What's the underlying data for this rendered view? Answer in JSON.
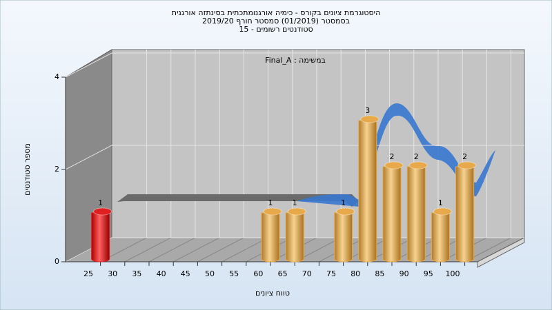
{
  "chart_data": {
    "type": "bar",
    "title": [
      "היסטוגרמת ציונים בקורס - כימיה אורגנומתכתית בסינתזה אורגנית",
      "בסמסטר  (01/2019)  סמסטר חורף 2019/20",
      "סטודנטים רשומים - 15"
    ],
    "annotation": "Final_A : במשימה",
    "x_label": "טווח ציונים",
    "y_label": "מספר סטודנטים",
    "categories": [
      "25",
      "30",
      "35",
      "40",
      "45",
      "50",
      "55",
      "60",
      "65",
      "70",
      "75",
      "80",
      "85",
      "90",
      "95",
      "100"
    ],
    "values": [
      1,
      0,
      0,
      0,
      0,
      0,
      0,
      1,
      1,
      0,
      1,
      3,
      2,
      2,
      1,
      2
    ],
    "colors": [
      "#e02020",
      "#e8a94a",
      "#e8a94a",
      "#e8a94a",
      "#e8a94a",
      "#e8a94a",
      "#e8a94a",
      "#e8a94a",
      "#e8a94a",
      "#e8a94a",
      "#e8a94a",
      "#e8a94a",
      "#e8a94a",
      "#e8a94a",
      "#e8a94a",
      "#e8a94a"
    ],
    "ylim": [
      0,
      4
    ],
    "yticks": [
      0,
      2,
      4
    ],
    "grid": true
  }
}
